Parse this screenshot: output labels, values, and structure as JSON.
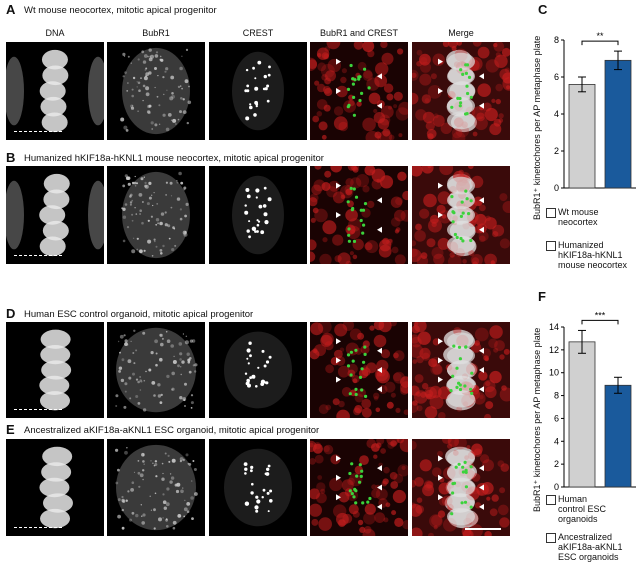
{
  "panels": {
    "A": {
      "letter": "A",
      "title": "Wt mouse neocortex, mitotic apical progenitor"
    },
    "B": {
      "letter": "B",
      "title": "Humanized hKIF18a-hKNL1 mouse neocortex, mitotic apical progenitor"
    },
    "D": {
      "letter": "D",
      "title": "Human ESC control organoid, mitotic apical progenitor"
    },
    "E": {
      "letter": "E",
      "title": "Ancestralized aKIF18a-aKNL1 ESC organoid, mitotic apical progenitor"
    },
    "C": {
      "letter": "C"
    },
    "F": {
      "letter": "F"
    }
  },
  "columns": [
    "DNA",
    "BubR1",
    "CREST",
    "BubR1 and CREST",
    "Merge"
  ],
  "colors": {
    "red": "#c81e1e",
    "green": "#3cd23c",
    "wt_bar": "#d0d0d0",
    "mut_bar": "#1a5a9c"
  },
  "chart_data": [
    {
      "type": "bar",
      "panel": "C",
      "ylabel": "BubR1⁺ kinetochores per AP metaphase plate",
      "ylim": [
        0,
        8
      ],
      "yticks": [
        "0",
        "2",
        "4",
        "6",
        "8"
      ],
      "categories": [
        "Wt mouse neocortex",
        "Humanized hKIF18a-hKNL1 mouse neocortex"
      ],
      "values": [
        5.6,
        6.9
      ],
      "errors": [
        0.4,
        0.5
      ],
      "significance": "**",
      "legend": [
        {
          "lines": [
            "Wt mouse",
            "neocortex"
          ],
          "color": "#d0d0d0"
        },
        {
          "lines": [
            "Humanized",
            "hKIF18a-hKNL1",
            "mouse neocortex"
          ],
          "color": "#1a5a9c"
        }
      ]
    },
    {
      "type": "bar",
      "panel": "F",
      "ylabel": "BubR1⁺ kinetochores per AP metaphase plate",
      "ylim": [
        0,
        14
      ],
      "yticks": [
        "0",
        "2",
        "4",
        "6",
        "8",
        "10",
        "12",
        "14"
      ],
      "categories": [
        "Human control ESC organoids",
        "Ancestralized aKIF18a-aKNL1 ESC organoids"
      ],
      "values": [
        12.7,
        8.9
      ],
      "errors": [
        1.0,
        0.7
      ],
      "significance": "***",
      "legend": [
        {
          "lines": [
            "Human",
            "control ESC",
            "organoids"
          ],
          "color": "#d0d0d0"
        },
        {
          "lines": [
            "Ancestralized",
            "aKIF18a-aKNL1",
            "ESC organoids"
          ],
          "color": "#1a5a9c"
        }
      ]
    }
  ]
}
